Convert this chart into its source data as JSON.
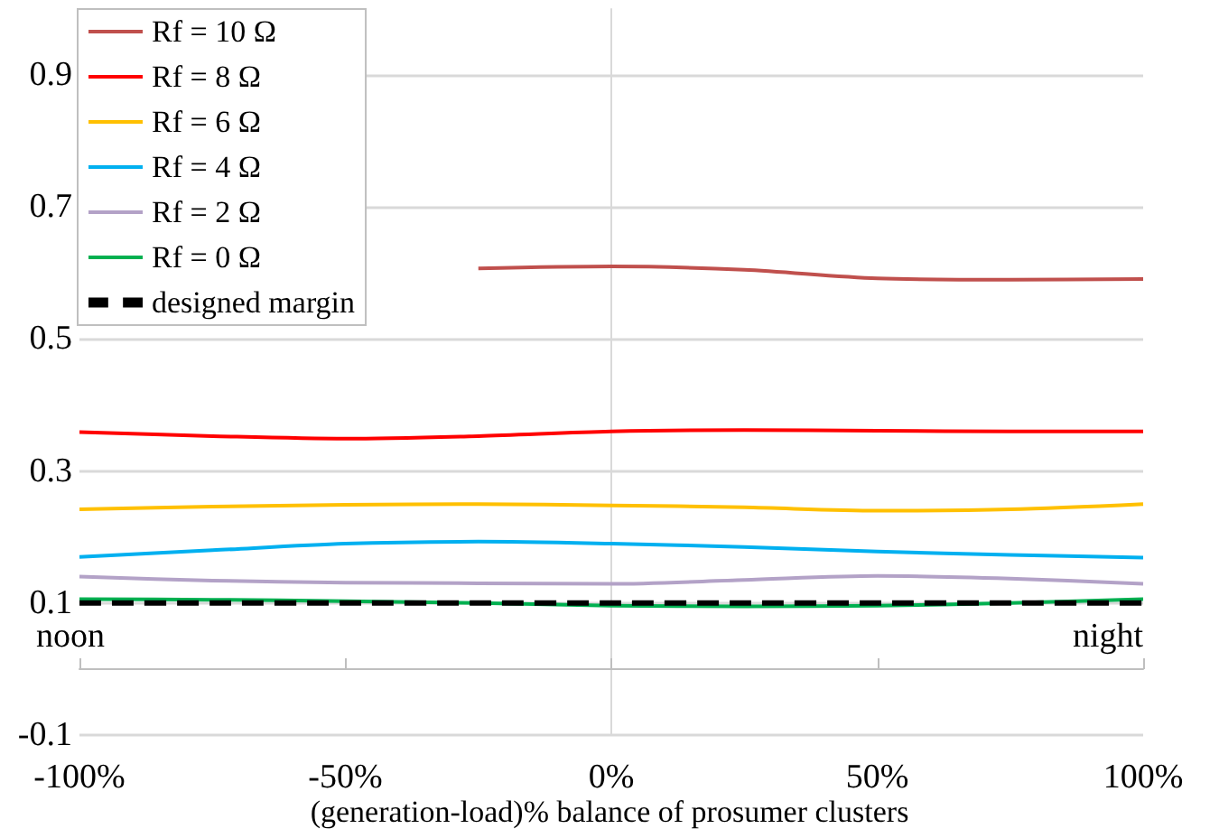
{
  "chart_data": {
    "type": "line",
    "xlabel": "(generation-load)% balance of prosumer clusters",
    "x": [
      -100,
      -75,
      -50,
      -25,
      0,
      25,
      50,
      75,
      100
    ],
    "series": [
      {
        "name": "Rf = 10 Ω",
        "color": "#c0504d",
        "values": [
          null,
          null,
          null,
          0.607,
          0.61,
          0.605,
          0.592,
          0.59,
          0.591
        ]
      },
      {
        "name": "Rf = 8 Ω",
        "color": "#ff0000",
        "values": [
          0.359,
          0.353,
          0.349,
          0.353,
          0.36,
          0.362,
          0.361,
          0.36,
          0.36
        ]
      },
      {
        "name": "Rf = 6 Ω",
        "color": "#ffc000",
        "values": [
          0.242,
          0.246,
          0.249,
          0.25,
          0.248,
          0.245,
          0.24,
          0.242,
          0.25
        ]
      },
      {
        "name": "Rf = 4 Ω",
        "color": "#00b0f0",
        "values": [
          0.17,
          0.18,
          0.19,
          0.193,
          0.19,
          0.185,
          0.178,
          0.173,
          0.169
        ]
      },
      {
        "name": "Rf = 2 Ω",
        "color": "#b3a2c7",
        "values": [
          0.14,
          0.134,
          0.131,
          0.13,
          0.129,
          0.135,
          0.141,
          0.137,
          0.129
        ]
      },
      {
        "name": "Rf = 0 Ω",
        "color": "#00b050",
        "values": [
          0.106,
          0.105,
          0.103,
          0.1,
          0.096,
          0.095,
          0.096,
          0.1,
          0.106
        ]
      },
      {
        "name": "designed margin",
        "color": "#000000",
        "line_style": "dashed",
        "values": [
          0.1,
          0.1,
          0.1,
          0.1,
          0.1,
          0.1,
          0.1,
          0.1,
          0.1
        ]
      }
    ],
    "xlim": [
      -100,
      100
    ],
    "xticks": [
      {
        "value": -100,
        "label": "-100%"
      },
      {
        "value": -50,
        "label": "-50%"
      },
      {
        "value": 0,
        "label": "0%"
      },
      {
        "value": 50,
        "label": "50%"
      },
      {
        "value": 100,
        "label": "100%"
      }
    ],
    "ylim": [
      -0.1,
      1.0
    ],
    "yticks": [
      -0.1,
      0.1,
      0.3,
      0.5,
      0.7,
      0.9
    ],
    "grid": "y",
    "legend": "top left",
    "marker": "none",
    "annotations": [
      "noon",
      "night"
    ]
  }
}
